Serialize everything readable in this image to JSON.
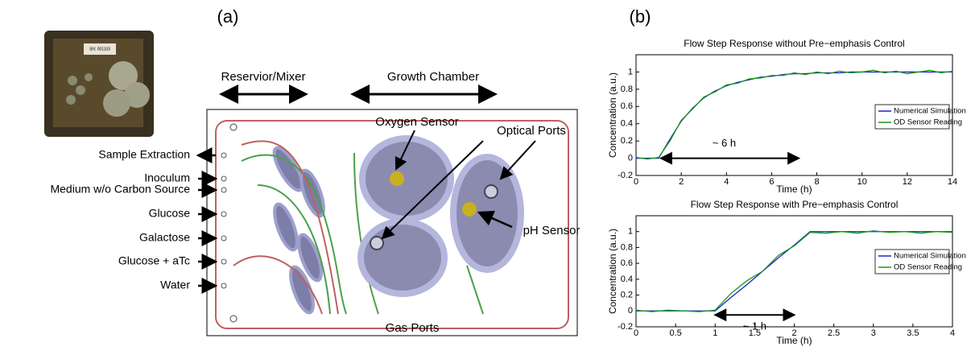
{
  "panel_a": {
    "label": "(a)",
    "photo_text": "SN: 001103",
    "top_labels": [
      "Reservior/Mixer",
      "Growth Chamber"
    ],
    "chip_labels": [
      "Oxygen Sensor",
      "Optical Ports",
      "pH Sensor",
      "Gas Ports"
    ],
    "inlet_labels": [
      "Sample Extraction",
      "Inoculum",
      "Medium w/o Carbon Source",
      "Glucose",
      "Galactose",
      "Glucose + aTc",
      "Water"
    ]
  },
  "panel_b": {
    "label": "(b)"
  },
  "chart_data": [
    {
      "type": "line",
      "title": "Flow Step Response without Pre−emphasis Control",
      "x_label": "Time (h)",
      "y_label": "Concentration (a.u.)",
      "annotation": "~ 6 h",
      "x": [
        0,
        0.5,
        1,
        1.5,
        2,
        2.5,
        3,
        3.5,
        4,
        4.5,
        5,
        5.5,
        6,
        6.5,
        7,
        7.5,
        8,
        8.5,
        9,
        9.5,
        10,
        10.5,
        11,
        11.5,
        12,
        12.5,
        13,
        13.5,
        14
      ],
      "series": [
        {
          "name": "Numerical Simulation",
          "color": "#1f1fd0",
          "values": [
            0,
            0,
            0,
            0.22,
            0.43,
            0.58,
            0.7,
            0.78,
            0.84,
            0.88,
            0.91,
            0.94,
            0.95,
            0.97,
            0.98,
            0.98,
            0.99,
            0.99,
            0.99,
            1,
            1,
            1,
            1,
            1,
            1,
            1,
            1,
            1,
            1
          ]
        },
        {
          "name": "OD Sensor Reading",
          "color": "#1a9a1a",
          "values": [
            0.01,
            -0.01,
            0.01,
            0.2,
            0.44,
            0.57,
            0.71,
            0.77,
            0.85,
            0.87,
            0.92,
            0.93,
            0.96,
            0.96,
            0.99,
            0.97,
            1.0,
            0.98,
            1.01,
            0.99,
            1.0,
            1.02,
            0.99,
            1.01,
            0.98,
            1.0,
            1.02,
            0.99,
            1.01
          ]
        }
      ],
      "xlim": [
        0,
        14
      ],
      "ylim": [
        -0.2,
        1.2
      ],
      "xticks": [
        0,
        2,
        4,
        6,
        8,
        10,
        12,
        14
      ],
      "yticks": [
        -0.2,
        0,
        0.2,
        0.4,
        0.6,
        0.8,
        1
      ],
      "legend": "right"
    },
    {
      "type": "line",
      "title": "Flow Step Response with Pre−emphasis Control",
      "x_label": "Time (h)",
      "y_label": "Concentration (a.u.)",
      "annotation": "~ 1 h",
      "x": [
        0,
        0.2,
        0.4,
        0.6,
        0.8,
        1,
        1.2,
        1.4,
        1.6,
        1.8,
        2,
        2.2,
        2.4,
        2.6,
        2.8,
        3,
        3.2,
        3.4,
        3.6,
        3.8,
        4
      ],
      "series": [
        {
          "name": "Numerical Simulation",
          "color": "#1f1fd0",
          "values": [
            0,
            0,
            0,
            0,
            0,
            0,
            0.17,
            0.33,
            0.5,
            0.67,
            0.83,
            1,
            1,
            1,
            1,
            1,
            1,
            1,
            1,
            1,
            1
          ]
        },
        {
          "name": "OD Sensor Reading",
          "color": "#1a9a1a",
          "values": [
            0.01,
            -0.01,
            0.01,
            0,
            -0.01,
            0.01,
            0.22,
            0.38,
            0.5,
            0.7,
            0.82,
            0.99,
            0.98,
            1.0,
            0.98,
            1.01,
            0.99,
            1.0,
            0.98,
            1.0,
            0.99
          ]
        }
      ],
      "xlim": [
        0,
        4
      ],
      "ylim": [
        -0.2,
        1.2
      ],
      "xticks": [
        0,
        0.5,
        1,
        1.5,
        2,
        2.5,
        3,
        3.5,
        4
      ],
      "yticks": [
        -0.2,
        0,
        0.2,
        0.4,
        0.6,
        0.8,
        1
      ],
      "legend": "right"
    }
  ]
}
